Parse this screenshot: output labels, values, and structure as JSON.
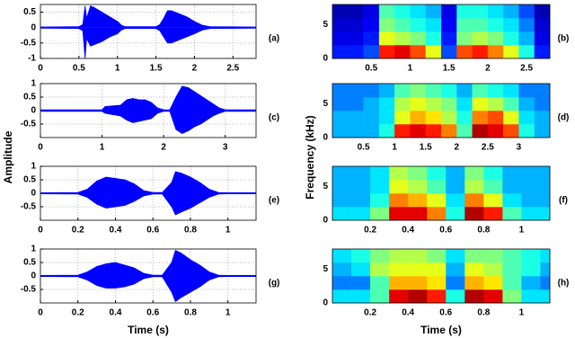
{
  "labels": {
    "amplitude": "Amplitude",
    "frequency": "Frequency (kHz)",
    "time_left": "Time (s)",
    "time_right": "Time (s)"
  },
  "chart_data": [
    {
      "type": "area",
      "label": "(a)",
      "color": "#0000ff",
      "grid": true,
      "xlim": [
        0,
        2.8
      ],
      "xticks": [
        0,
        0.5,
        1,
        1.5,
        2,
        2.5
      ],
      "ylim": [
        -1,
        0.75
      ],
      "yticks": [
        0.5,
        0,
        -0.5,
        -1
      ],
      "x": [
        0,
        0.5,
        0.55,
        0.58,
        0.6,
        0.65,
        0.7,
        0.8,
        0.9,
        1.0,
        1.05,
        1.1,
        1.5,
        1.55,
        1.6,
        1.65,
        1.7,
        1.8,
        1.9,
        2.0,
        2.1,
        2.2,
        2.8
      ],
      "values": [
        0.02,
        0.03,
        0.1,
        0.7,
        0.3,
        0.7,
        0.65,
        0.5,
        0.35,
        0.2,
        0.08,
        0.03,
        0.03,
        0.1,
        0.3,
        0.55,
        0.55,
        0.45,
        0.35,
        0.2,
        0.08,
        0.03,
        0.02
      ],
      "lower": [
        -0.02,
        -0.03,
        -0.1,
        -1,
        -0.35,
        -0.6,
        -0.55,
        -0.45,
        -0.3,
        -0.2,
        -0.08,
        -0.03,
        -0.03,
        -0.1,
        -0.3,
        -0.5,
        -0.5,
        -0.4,
        -0.3,
        -0.2,
        -0.08,
        -0.03,
        -0.02
      ]
    },
    {
      "type": "heatmap",
      "label": "(b)",
      "colormap": "jet",
      "xlim": [
        0,
        2.8
      ],
      "xticks": [
        0.5,
        1,
        1.5,
        2,
        2.5
      ],
      "ylim": [
        0,
        8
      ],
      "yticks": [
        0,
        5
      ],
      "xbins": [
        0,
        0.2,
        0.4,
        0.6,
        0.8,
        1,
        1.2,
        1.4,
        1.6,
        1.8,
        2,
        2.2,
        2.4,
        2.6,
        2.8
      ],
      "ybins": [
        0,
        2,
        4,
        6,
        8
      ],
      "z": [
        [
          0.15,
          0.15,
          0.2,
          0.85,
          0.9,
          0.8,
          0.6,
          0.2,
          0.8,
          0.85,
          0.75,
          0.6,
          0.4,
          0.15
        ],
        [
          0.1,
          0.1,
          0.15,
          0.6,
          0.55,
          0.5,
          0.4,
          0.15,
          0.5,
          0.55,
          0.5,
          0.4,
          0.3,
          0.1
        ],
        [
          0.08,
          0.08,
          0.12,
          0.5,
          0.45,
          0.4,
          0.35,
          0.12,
          0.45,
          0.45,
          0.4,
          0.35,
          0.25,
          0.08
        ],
        [
          0.05,
          0.05,
          0.1,
          0.45,
          0.4,
          0.35,
          0.3,
          0.1,
          0.4,
          0.4,
          0.35,
          0.3,
          0.2,
          0.05
        ]
      ]
    },
    {
      "type": "area",
      "label": "(c)",
      "color": "#0000ff",
      "grid": true,
      "xlim": [
        0,
        3.5
      ],
      "xticks": [
        0,
        1,
        2,
        3
      ],
      "ylim": [
        -1,
        1
      ],
      "yticks": [
        1,
        0.5,
        0,
        -0.5
      ],
      "x": [
        0,
        1.0,
        1.05,
        1.3,
        1.4,
        1.5,
        1.6,
        1.7,
        1.8,
        1.9,
        2.0,
        2.1,
        2.2,
        2.3,
        2.4,
        2.5,
        2.6,
        2.7,
        2.8,
        2.9,
        3.0,
        3.5
      ],
      "values": [
        0.03,
        0.03,
        0.15,
        0.2,
        0.4,
        0.45,
        0.4,
        0.4,
        0.3,
        0.1,
        0.03,
        0.03,
        0.5,
        0.9,
        0.85,
        0.7,
        0.55,
        0.4,
        0.25,
        0.1,
        0.03,
        0.03
      ],
      "lower": [
        -0.03,
        -0.03,
        -0.1,
        -0.2,
        -0.35,
        -0.45,
        -0.4,
        -0.35,
        -0.3,
        -0.1,
        -0.03,
        -0.03,
        -0.7,
        -0.85,
        -0.75,
        -0.6,
        -0.5,
        -0.35,
        -0.2,
        -0.1,
        -0.03,
        -0.03
      ]
    },
    {
      "type": "heatmap",
      "label": "(d)",
      "colormap": "jet",
      "xlim": [
        0,
        3.5
      ],
      "xticks": [
        0.5,
        1,
        1.5,
        2,
        2.5,
        3
      ],
      "ylim": [
        0,
        8
      ],
      "yticks": [
        0,
        5
      ],
      "xbins": [
        0,
        0.25,
        0.5,
        0.75,
        1,
        1.25,
        1.5,
        1.75,
        2,
        2.25,
        2.5,
        2.75,
        3,
        3.25,
        3.5
      ],
      "ybins": [
        0,
        2,
        4,
        6,
        8
      ],
      "z": [
        [
          0.3,
          0.3,
          0.3,
          0.4,
          0.85,
          0.9,
          0.85,
          0.75,
          0.45,
          0.95,
          0.9,
          0.8,
          0.4,
          0.3
        ],
        [
          0.3,
          0.3,
          0.3,
          0.35,
          0.6,
          0.7,
          0.65,
          0.55,
          0.4,
          0.75,
          0.8,
          0.6,
          0.35,
          0.3
        ],
        [
          0.25,
          0.25,
          0.3,
          0.35,
          0.55,
          0.6,
          0.55,
          0.5,
          0.35,
          0.6,
          0.55,
          0.45,
          0.3,
          0.25
        ],
        [
          0.25,
          0.25,
          0.25,
          0.3,
          0.45,
          0.5,
          0.45,
          0.4,
          0.3,
          0.45,
          0.4,
          0.35,
          0.25,
          0.25
        ]
      ]
    },
    {
      "type": "area",
      "label": "(e)",
      "color": "#0000ff",
      "grid": true,
      "xlim": [
        0,
        1.15
      ],
      "xticks": [
        0,
        0.2,
        0.4,
        0.6,
        0.8,
        1
      ],
      "ylim": [
        -1,
        1
      ],
      "yticks": [
        1,
        0.5,
        0,
        -0.5
      ],
      "x": [
        0,
        0.2,
        0.25,
        0.3,
        0.35,
        0.4,
        0.45,
        0.5,
        0.55,
        0.6,
        0.65,
        0.7,
        0.72,
        0.75,
        0.8,
        0.85,
        0.9,
        0.95,
        1.0,
        1.15
      ],
      "values": [
        0.02,
        0.03,
        0.15,
        0.45,
        0.6,
        0.55,
        0.5,
        0.35,
        0.1,
        0.03,
        0.03,
        0.4,
        0.8,
        0.75,
        0.6,
        0.4,
        0.15,
        0.03,
        0.02,
        0.02
      ],
      "lower": [
        -0.02,
        -0.03,
        -0.15,
        -0.4,
        -0.55,
        -0.5,
        -0.45,
        -0.3,
        -0.1,
        -0.03,
        -0.03,
        -0.5,
        -0.8,
        -0.7,
        -0.55,
        -0.35,
        -0.15,
        -0.03,
        -0.02,
        -0.02
      ]
    },
    {
      "type": "heatmap",
      "label": "(f)",
      "colormap": "jet",
      "xlim": [
        0,
        1.15
      ],
      "xticks": [
        0.2,
        0.4,
        0.6,
        0.8,
        1
      ],
      "ylim": [
        0,
        8
      ],
      "yticks": [
        0,
        5
      ],
      "xbins": [
        0,
        0.1,
        0.2,
        0.3,
        0.4,
        0.5,
        0.6,
        0.7,
        0.8,
        0.9,
        1,
        1.1,
        1.15
      ],
      "ybins": [
        0,
        2,
        4,
        6,
        8
      ],
      "z": [
        [
          0.35,
          0.35,
          0.5,
          0.9,
          0.9,
          0.75,
          0.4,
          0.95,
          0.85,
          0.45,
          0.35,
          0.35
        ],
        [
          0.3,
          0.3,
          0.4,
          0.75,
          0.7,
          0.6,
          0.35,
          0.75,
          0.6,
          0.35,
          0.3,
          0.3
        ],
        [
          0.3,
          0.3,
          0.35,
          0.6,
          0.55,
          0.45,
          0.3,
          0.55,
          0.45,
          0.3,
          0.3,
          0.3
        ],
        [
          0.3,
          0.3,
          0.35,
          0.55,
          0.5,
          0.4,
          0.3,
          0.5,
          0.4,
          0.3,
          0.3,
          0.3
        ]
      ]
    },
    {
      "type": "area",
      "label": "(g)",
      "color": "#0000ff",
      "grid": true,
      "xlim": [
        0,
        1.15
      ],
      "xticks": [
        0,
        0.2,
        0.4,
        0.6,
        0.8,
        1
      ],
      "ylim": [
        -1,
        1
      ],
      "yticks": [
        1,
        0.5,
        0,
        -0.5
      ],
      "x": [
        0,
        0.2,
        0.25,
        0.3,
        0.35,
        0.4,
        0.45,
        0.5,
        0.55,
        0.6,
        0.65,
        0.7,
        0.72,
        0.75,
        0.8,
        0.85,
        0.9,
        0.95,
        1.0,
        1.15
      ],
      "values": [
        0.02,
        0.03,
        0.15,
        0.35,
        0.45,
        0.5,
        0.4,
        0.3,
        0.1,
        0.03,
        0.03,
        0.5,
        0.95,
        0.85,
        0.6,
        0.4,
        0.15,
        0.03,
        0.02,
        0.02
      ],
      "lower": [
        -0.02,
        -0.03,
        -0.15,
        -0.35,
        -0.45,
        -0.45,
        -0.4,
        -0.3,
        -0.1,
        -0.03,
        -0.03,
        -0.6,
        -0.95,
        -0.8,
        -0.6,
        -0.4,
        -0.15,
        -0.03,
        -0.02,
        -0.02
      ]
    },
    {
      "type": "heatmap",
      "label": "(h)",
      "colormap": "jet",
      "xlim": [
        0,
        1.15
      ],
      "xticks": [
        0.2,
        0.4,
        0.6,
        0.8,
        1
      ],
      "ylim": [
        0,
        8
      ],
      "yticks": [
        0,
        5
      ],
      "xbins": [
        0,
        0.1,
        0.2,
        0.3,
        0.4,
        0.5,
        0.6,
        0.7,
        0.8,
        0.9,
        1,
        1.1,
        1.15
      ],
      "ybins": [
        0,
        2,
        4,
        6,
        8
      ],
      "z": [
        [
          0.35,
          0.35,
          0.45,
          0.9,
          0.95,
          0.85,
          0.4,
          0.95,
          0.9,
          0.5,
          0.35,
          0.35
        ],
        [
          0.25,
          0.25,
          0.45,
          0.7,
          0.7,
          0.65,
          0.25,
          0.7,
          0.65,
          0.45,
          0.3,
          0.25
        ],
        [
          0.3,
          0.35,
          0.55,
          0.6,
          0.6,
          0.6,
          0.3,
          0.6,
          0.55,
          0.45,
          0.4,
          0.3
        ],
        [
          0.35,
          0.4,
          0.5,
          0.55,
          0.55,
          0.5,
          0.35,
          0.5,
          0.5,
          0.45,
          0.4,
          0.35
        ]
      ]
    }
  ]
}
